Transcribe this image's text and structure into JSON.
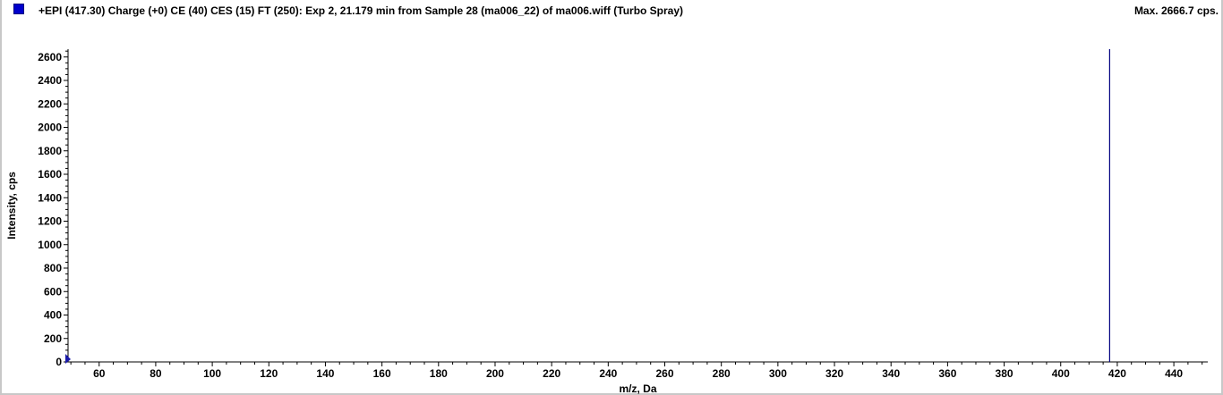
{
  "header": {
    "title": "+EPI (417.30) Charge (+0) CE (40) CES (15) FT (250): Exp 2, 21.179 min from Sample 28 (ma006_22) of ma006.wiff (Turbo Spray)",
    "max_label": "Max. 2666.7 cps."
  },
  "colors": {
    "series": "#000080",
    "legend_swatch": "#0000cc"
  },
  "chart_data": {
    "type": "bar",
    "title": "+EPI (417.30) Charge (+0) CE (40) CES (15) FT (250): Exp 2, 21.179 min from Sample 28 (ma006_22) of ma006.wiff (Turbo Spray)",
    "xlabel": "m/z, Da",
    "ylabel": "Intensity, cps",
    "xlim": [
      49,
      452
    ],
    "ylim": [
      0,
      2666.7
    ],
    "x_ticks": [
      60,
      80,
      100,
      120,
      140,
      160,
      180,
      200,
      220,
      240,
      260,
      280,
      300,
      320,
      340,
      360,
      380,
      400,
      420,
      440
    ],
    "y_ticks": [
      0,
      200,
      400,
      600,
      800,
      1000,
      1200,
      1400,
      1600,
      1800,
      2000,
      2200,
      2400,
      2600
    ],
    "grid": false,
    "peaks": [
      {
        "x": 417.3,
        "y": 2666.7
      }
    ]
  }
}
